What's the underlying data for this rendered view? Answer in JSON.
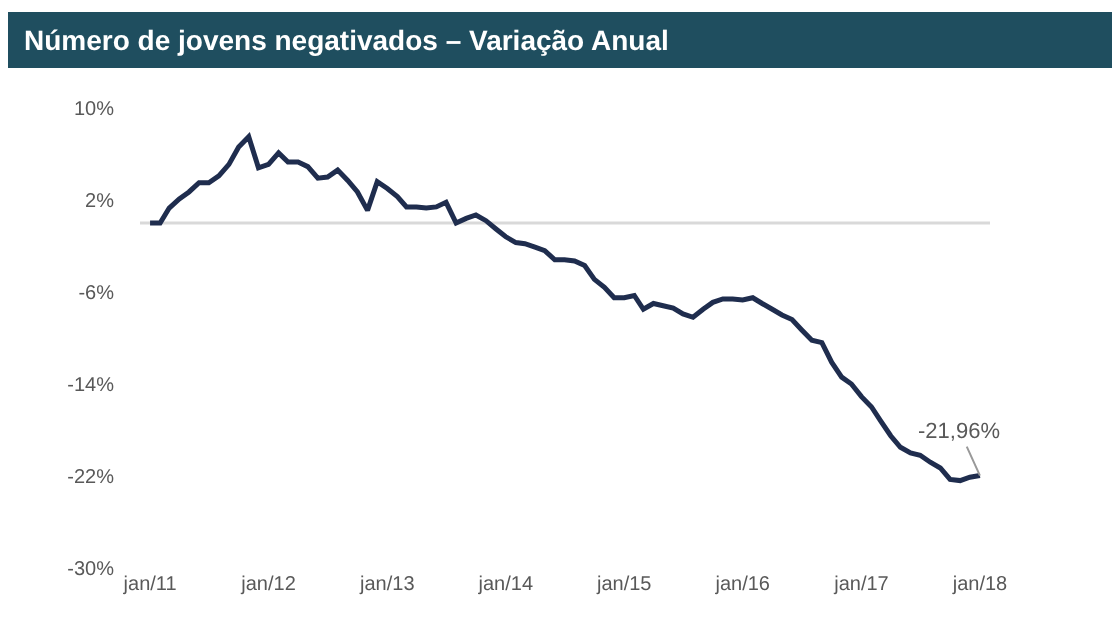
{
  "chart_data": {
    "type": "line",
    "title": "Número de jovens negativados – Variação Anual",
    "x": [
      "2011-01",
      "2011-02",
      "2011-03",
      "2011-04",
      "2011-05",
      "2011-06",
      "2011-07",
      "2011-08",
      "2011-09",
      "2011-10",
      "2011-11",
      "2011-12",
      "2012-01",
      "2012-02",
      "2012-03",
      "2012-04",
      "2012-05",
      "2012-06",
      "2012-07",
      "2012-08",
      "2012-09",
      "2012-10",
      "2012-11",
      "2012-12",
      "2013-01",
      "2013-02",
      "2013-03",
      "2013-04",
      "2013-05",
      "2013-06",
      "2013-07",
      "2013-08",
      "2013-09",
      "2013-10",
      "2013-11",
      "2013-12",
      "2014-01",
      "2014-02",
      "2014-03",
      "2014-04",
      "2014-05",
      "2014-06",
      "2014-07",
      "2014-08",
      "2014-09",
      "2014-10",
      "2014-11",
      "2014-12",
      "2015-01",
      "2015-02",
      "2015-03",
      "2015-04",
      "2015-05",
      "2015-06",
      "2015-07",
      "2015-08",
      "2015-09",
      "2015-10",
      "2015-11",
      "2015-12",
      "2016-01",
      "2016-02",
      "2016-03",
      "2016-04",
      "2016-05",
      "2016-06",
      "2016-07",
      "2016-08",
      "2016-09",
      "2016-10",
      "2016-11",
      "2016-12",
      "2017-01",
      "2017-02",
      "2017-03",
      "2017-04",
      "2017-05",
      "2017-06",
      "2017-07",
      "2017-08",
      "2017-09",
      "2017-10",
      "2017-11",
      "2017-12",
      "2018-01"
    ],
    "series": [
      {
        "color": "#1f2d4e",
        "values": [
          0,
          0,
          1.3,
          2.1,
          2.7,
          3.5,
          3.5,
          4.1,
          5.1,
          6.6,
          7.5,
          4.8,
          5.1,
          6.1,
          5.3,
          5.3,
          4.9,
          3.9,
          4.0,
          4.6,
          3.7,
          2.7,
          1.1,
          3.6,
          3.0,
          2.3,
          1.4,
          1.4,
          1.3,
          1.4,
          1.8,
          0,
          0.4,
          0.7,
          0.2,
          -0.5,
          -1.2,
          -1.7,
          -1.8,
          -2.1,
          -2.4,
          -3.2,
          -3.2,
          -3.3,
          -3.7,
          -4.9,
          -5.6,
          -6.5,
          -6.5,
          -6.3,
          -7.5,
          -7.0,
          -7.2,
          -7.4,
          -7.9,
          -8.2,
          -7.5,
          -6.9,
          -6.6,
          -6.6,
          -6.7,
          -6.5,
          -7.0,
          -7.5,
          -8.0,
          -8.4,
          -9.3,
          -10.2,
          -10.4,
          -12.1,
          -13.4,
          -14.0,
          -15.1,
          -16.0,
          -17.2,
          -18.5,
          -19.5,
          -20.0,
          -20.2,
          -20.8,
          -21.3,
          -22.3,
          -22.4,
          -22.1,
          -21.96
        ]
      }
    ],
    "xlim": [
      "2010-12-01",
      "2018-02-01"
    ],
    "xticks": [
      {
        "value": "2011-01",
        "label": "jan/11"
      },
      {
        "value": "2012-01",
        "label": "jan/12"
      },
      {
        "value": "2013-01",
        "label": "jan/13"
      },
      {
        "value": "2014-01",
        "label": "jan/14"
      },
      {
        "value": "2015-01",
        "label": "jan/15"
      },
      {
        "value": "2016-01",
        "label": "jan/16"
      },
      {
        "value": "2017-01",
        "label": "jan/17"
      },
      {
        "value": "2018-01",
        "label": "jan/18"
      }
    ],
    "ylim": [
      -30,
      10
    ],
    "yticks": [
      {
        "value": 10,
        "label": "10%"
      },
      {
        "value": 2,
        "label": "2%"
      },
      {
        "value": -6,
        "label": "-6%"
      },
      {
        "value": -14,
        "label": "-14%"
      },
      {
        "value": -22,
        "label": "-22%"
      },
      {
        "value": -30,
        "label": "-30%"
      }
    ],
    "ref_lines": [
      {
        "axis": "y",
        "value": 0,
        "color": "#d9d9d9"
      }
    ],
    "annotations": [
      {
        "text": "-21,96%",
        "x": "2018-01",
        "y": -21.96
      }
    ],
    "grid": false,
    "marker": "none",
    "line_style": "solid"
  }
}
